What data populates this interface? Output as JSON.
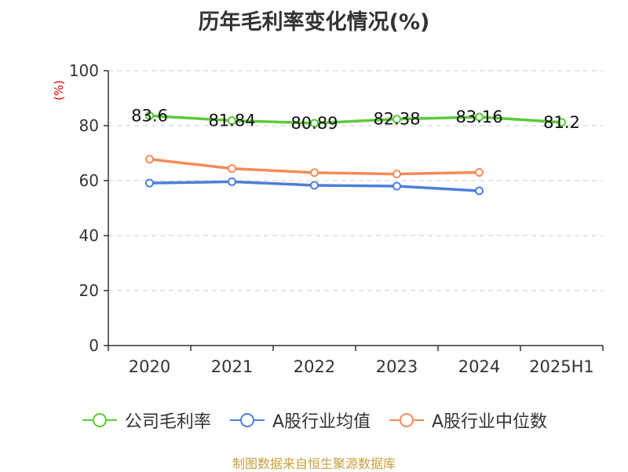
{
  "chart_data": {
    "type": "line",
    "title": "历年毛利率变化情况(%)",
    "ylabel": "(%)",
    "xlabel": "",
    "categories": [
      "2020",
      "2021",
      "2022",
      "2023",
      "2024",
      "2025H1"
    ],
    "ylim": [
      0,
      100
    ],
    "yticks": [
      "0",
      "20",
      "40",
      "60",
      "80",
      "100"
    ],
    "grid": true,
    "legend_position": "bottom",
    "series": [
      {
        "name": "公司毛利率",
        "color": "#5cc93a",
        "values": [
          83.6,
          81.84,
          80.89,
          82.38,
          83.16,
          81.2
        ],
        "labels": [
          "83.6",
          "81.84",
          "80.89",
          "82.38",
          "83.16",
          "81.2"
        ]
      },
      {
        "name": "A股行业均值",
        "color": "#4d7fdb",
        "values": [
          59.1,
          59.6,
          58.3,
          58.0,
          56.3,
          null
        ]
      },
      {
        "name": "A股行业中位数",
        "color": "#f38b5a",
        "values": [
          67.8,
          64.4,
          62.9,
          62.4,
          63.0,
          null
        ]
      }
    ]
  },
  "source": "制图数据来自恒生聚源数据库"
}
